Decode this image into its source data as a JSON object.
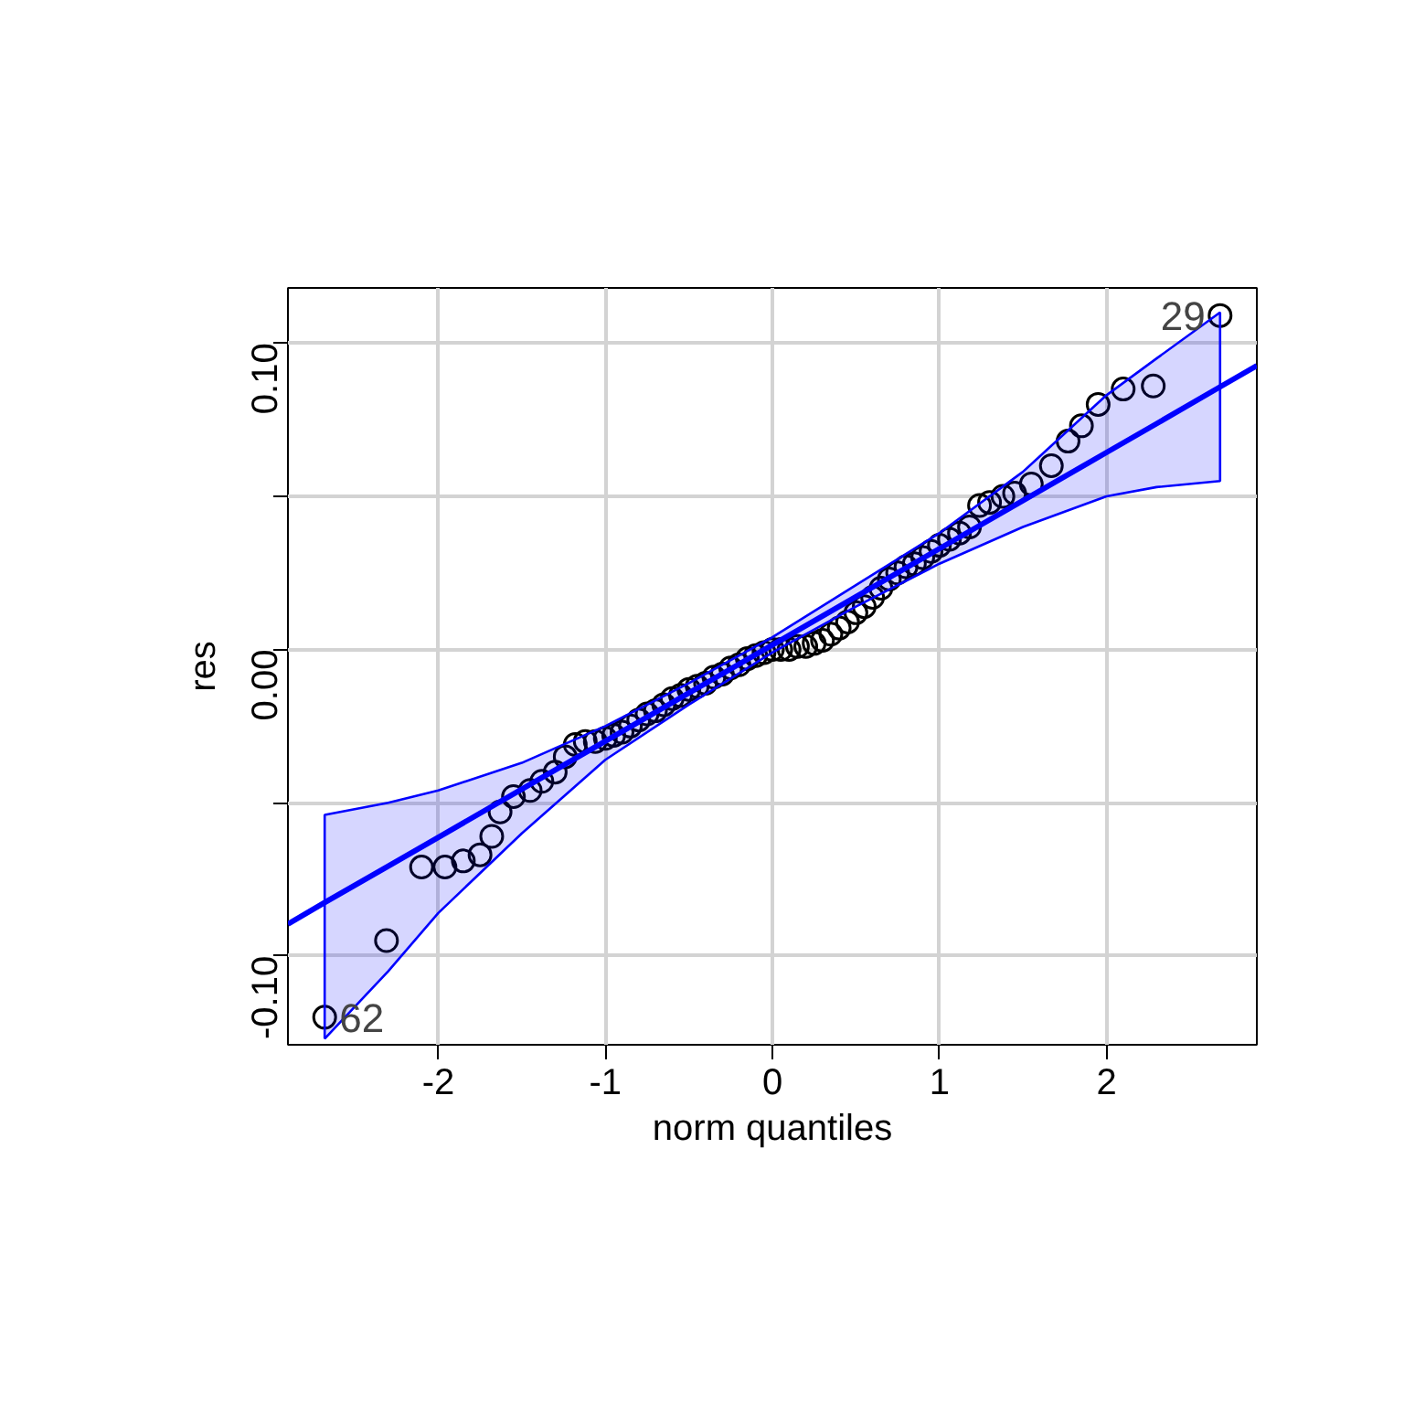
{
  "chart_data": {
    "type": "scatter",
    "xlabel": "norm quantiles",
    "ylabel": "res",
    "xlim": [
      -2.9,
      2.9
    ],
    "ylim": [
      -0.129,
      0.118
    ],
    "xticks": [
      -2,
      -1,
      0,
      1,
      2
    ],
    "yticks": [
      {
        "value": -0.1,
        "label": "-0.10"
      },
      {
        "value": -0.05,
        "label": null
      },
      {
        "value": 0.0,
        "label": "0.00"
      },
      {
        "value": 0.05,
        "label": null
      },
      {
        "value": 0.1,
        "label": "0.10"
      }
    ],
    "grid": true,
    "marker": "circle",
    "series": [
      {
        "color": "#000000",
        "x": [
          -2.68,
          -2.31,
          -2.1,
          -1.96,
          -1.85,
          -1.75,
          -1.68,
          -1.63,
          -1.55,
          -1.45,
          -1.38,
          -1.3,
          -1.24,
          -1.18,
          -1.12,
          -1.06,
          -1.0,
          -0.95,
          -0.9,
          -0.85,
          -0.8,
          -0.75,
          -0.7,
          -0.65,
          -0.6,
          -0.55,
          -0.5,
          -0.45,
          -0.4,
          -0.35,
          -0.3,
          -0.25,
          -0.2,
          -0.15,
          -0.1,
          -0.05,
          0.0,
          0.05,
          0.1,
          0.15,
          0.2,
          0.25,
          0.3,
          0.35,
          0.4,
          0.45,
          0.5,
          0.55,
          0.6,
          0.65,
          0.7,
          0.75,
          0.8,
          0.85,
          0.9,
          0.95,
          1.0,
          1.06,
          1.12,
          1.18,
          1.24,
          1.3,
          1.38,
          1.45,
          1.55,
          1.67,
          1.77,
          1.85,
          1.95,
          2.1,
          2.28,
          2.68
        ],
        "values": [
          -0.12,
          -0.095,
          -0.071,
          -0.071,
          -0.069,
          -0.067,
          -0.061,
          -0.053,
          -0.048,
          -0.046,
          -0.043,
          -0.04,
          -0.035,
          -0.031,
          -0.03,
          -0.03,
          -0.029,
          -0.028,
          -0.027,
          -0.025,
          -0.023,
          -0.021,
          -0.02,
          -0.018,
          -0.016,
          -0.015,
          -0.013,
          -0.012,
          -0.011,
          -0.009,
          -0.008,
          -0.006,
          -0.005,
          -0.003,
          -0.002,
          -0.001,
          0.0,
          0.0,
          0.0,
          0.001,
          0.001,
          0.002,
          0.003,
          0.005,
          0.007,
          0.009,
          0.012,
          0.014,
          0.017,
          0.02,
          0.023,
          0.025,
          0.027,
          0.028,
          0.03,
          0.032,
          0.034,
          0.036,
          0.038,
          0.04,
          0.047,
          0.048,
          0.05,
          0.051,
          0.054,
          0.06,
          0.068,
          0.073,
          0.08,
          0.085,
          0.086,
          0.109
        ]
      },
      {
        "type": "line",
        "marker": "none",
        "color": "#0000ff",
        "x": [
          -2.9,
          -2.68,
          -2.3,
          -2.0,
          -1.5,
          -1.0,
          -0.5,
          0.0,
          0.5,
          1.0,
          1.5,
          2.0,
          2.3,
          2.68,
          2.9
        ],
        "values": [
          -0.0896,
          -0.0826,
          -0.0707,
          -0.0613,
          -0.0456,
          -0.0299,
          -0.0142,
          0.0015,
          0.0172,
          0.0329,
          0.0486,
          0.0643,
          0.0737,
          0.0857,
          0.0926
        ],
        "lower": [
          null,
          -0.127,
          -0.105,
          -0.086,
          -0.06,
          -0.036,
          -0.018,
          -0.001,
          0.014,
          0.028,
          0.04,
          0.05,
          0.053,
          0.055,
          null
        ],
        "upper": [
          null,
          -0.054,
          -0.05,
          -0.046,
          -0.037,
          -0.025,
          -0.011,
          0.004,
          0.021,
          0.038,
          0.058,
          0.083,
          0.095,
          0.11,
          null
        ]
      }
    ],
    "annotations": [
      {
        "text": "62",
        "x": -2.68,
        "y": -0.12
      },
      {
        "text": "29",
        "x": 2.68,
        "y": 0.109
      }
    ]
  }
}
